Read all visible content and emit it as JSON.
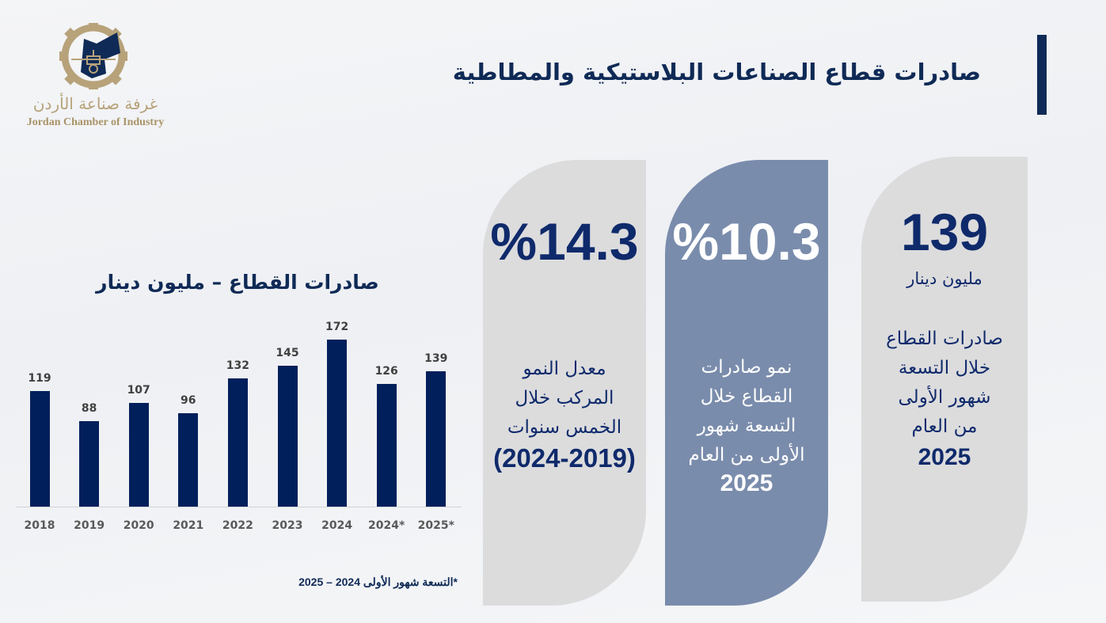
{
  "logo": {
    "arabic_name": "غرفة صناعة الأردن",
    "english_name": "Jordan Chamber of Industry",
    "colors": {
      "gold": "#b7a27a",
      "navy": "#0f2a56"
    }
  },
  "header": {
    "title": "صادرات قطاع الصناعات البلاستيكية والمطاطية"
  },
  "cards": [
    {
      "value": "139",
      "unit": "مليون دينار",
      "description": "صادرات القطاع خلال التسعة شهور الأولى من العام",
      "year": "2025"
    },
    {
      "value": "%10.3",
      "description": "نمو صادرات القطاع خلال التسعة شهور الأولى من العام",
      "year": "2025"
    },
    {
      "value": "%14.3",
      "description": "معدل النمو المركب خلال الخمس سنوات",
      "year": "(2024-2019)"
    }
  ],
  "chart": {
    "title": "صادرات القطاع – مليون دينار",
    "footnote": "*التسعة شهور الأولى 2024 – 2025"
  },
  "chart_data": {
    "type": "bar",
    "title": "صادرات القطاع – مليون دينار",
    "categories": [
      "2018",
      "2019",
      "2020",
      "2021",
      "2022",
      "2023",
      "2024",
      "2024*",
      "2025*"
    ],
    "values": [
      119,
      88,
      107,
      96,
      132,
      145,
      172,
      126,
      139
    ],
    "xlabel": "",
    "ylabel": "مليون دينار",
    "ylim": [
      0,
      180
    ],
    "grid": false,
    "data_labels": true,
    "legend": null,
    "bar_color": "#001f5b",
    "annotations": [
      "*التسعة شهور الأولى 2024 – 2025"
    ]
  }
}
